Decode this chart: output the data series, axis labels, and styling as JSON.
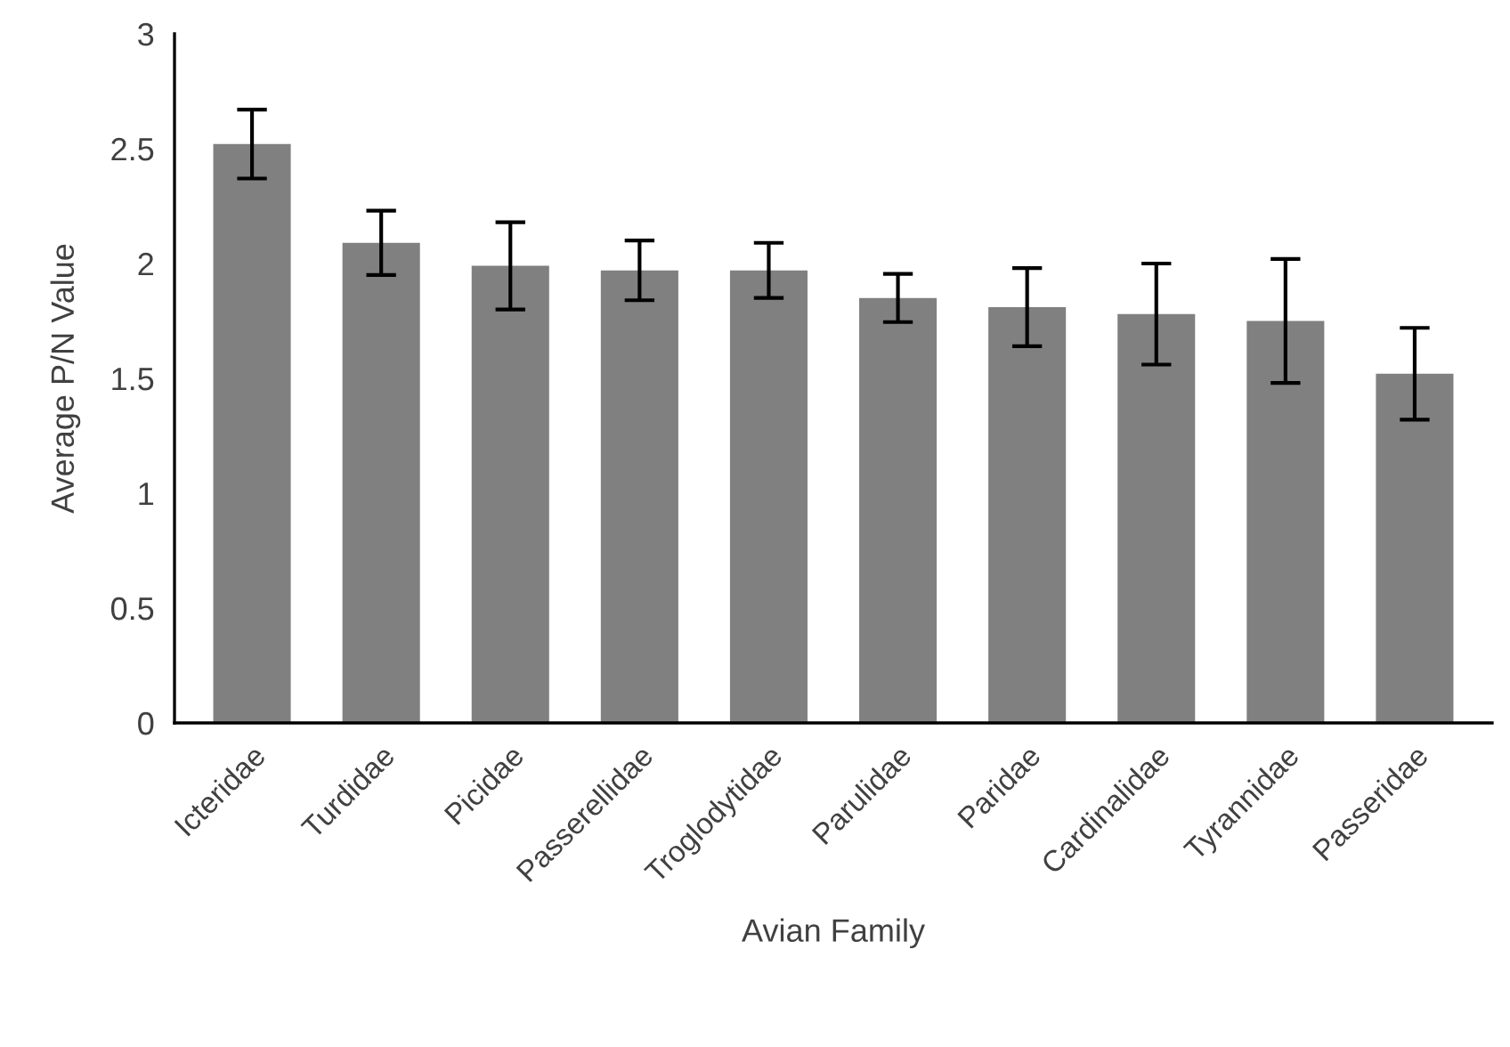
{
  "chart_data": {
    "type": "bar",
    "xlabel": "Avian Family",
    "ylabel": "Average P/N Value",
    "categories": [
      "Icteridae",
      "Turdidae",
      "Picidae",
      "Passerellidae",
      "Troglodytidae",
      "Parulidae",
      "Paridae",
      "Cardinalidae",
      "Tyrannidae",
      "Passeridae"
    ],
    "values": [
      2.52,
      2.09,
      1.99,
      1.97,
      1.97,
      1.85,
      1.81,
      1.78,
      1.75,
      1.52
    ],
    "errors": [
      0.15,
      0.14,
      0.19,
      0.13,
      0.12,
      0.105,
      0.17,
      0.22,
      0.27,
      0.2
    ],
    "color": "#808080",
    "ylim": [
      0,
      3
    ],
    "yticks": [
      0,
      0.5,
      1,
      1.5,
      2,
      2.5,
      3
    ],
    "grid": false,
    "legend": false
  }
}
